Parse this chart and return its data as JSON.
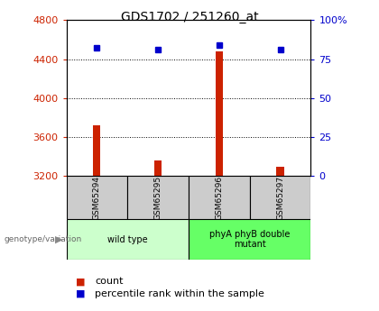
{
  "title": "GDS1702 / 251260_at",
  "samples": [
    "GSM65294",
    "GSM65295",
    "GSM65296",
    "GSM65297"
  ],
  "counts": [
    3720,
    3360,
    4480,
    3290
  ],
  "percentile_ranks": [
    82,
    81,
    84,
    81
  ],
  "ylim_left": [
    3200,
    4800
  ],
  "ylim_right": [
    0,
    100
  ],
  "yticks_left": [
    3200,
    3600,
    4000,
    4400,
    4800
  ],
  "yticks_right": [
    0,
    25,
    50,
    75,
    100
  ],
  "groups": [
    {
      "label": "wild type",
      "indices": [
        0,
        1
      ],
      "color": "#ccffcc"
    },
    {
      "label": "phyA phyB double\nmutant",
      "indices": [
        2,
        3
      ],
      "color": "#66ff66"
    }
  ],
  "bar_color": "#cc2200",
  "dot_color": "#0000cc",
  "left_tick_color": "#cc2200",
  "right_tick_color": "#0000cc",
  "sample_box_color": "#cccccc",
  "background_color": "#ffffff",
  "title_fontsize": 10,
  "axis_fontsize": 8,
  "legend_fontsize": 8,
  "genotype_label": "genotype/variation",
  "legend_count": "count",
  "legend_percentile": "percentile rank within the sample",
  "bar_width": 0.12
}
